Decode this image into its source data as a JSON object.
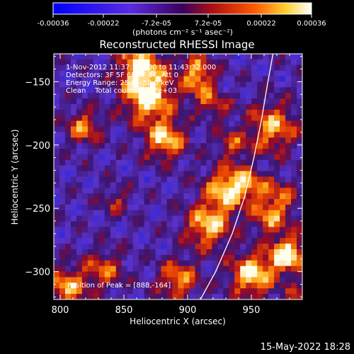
{
  "colorbar": {
    "ticks": [
      "-0.00036",
      "-0.00022",
      "-7.2e-05",
      "7.2e-05",
      "0.00022",
      "0.00036"
    ],
    "tick_values": [
      -0.00036,
      -0.00022,
      -7.2e-05,
      7.2e-05,
      0.00022,
      0.00036
    ],
    "units": "(photons cm⁻² s⁻¹ asec⁻²)"
  },
  "chart_data": {
    "type": "heatmap",
    "title": "Reconstructed RHESSI Image",
    "xlabel": "Heliocentric X (arcsec)",
    "ylabel": "Heliocentric Y (arcsec)",
    "xlim": [
      795,
      990
    ],
    "ylim": [
      -322,
      -128
    ],
    "xticks": [
      800,
      850,
      900,
      950
    ],
    "yticks": [
      -150,
      -200,
      -250,
      -300
    ],
    "xtick_labels": [
      "800",
      "850",
      "900",
      "950"
    ],
    "ytick_labels": [
      "−150",
      "−200",
      "−250",
      "−300"
    ],
    "colormap": "blue-purple-red-yellow-white",
    "annotations": [
      "1-Nov-2012 11:37:32.000 to 11:43:32.000",
      "Detectors: 3F 5F 6F 7F 8F, Att 0",
      "Energy Range: 25.0 - 50.0 keV",
      "Clean    Total counts: 5.77e+03"
    ],
    "peak_label": "Position of Peak = [888,-164]",
    "peak": [
      888,
      -164
    ],
    "limb_curve": [
      [
        910,
        -322
      ],
      [
        922,
        -300
      ],
      [
        935,
        -270
      ],
      [
        945,
        -240
      ],
      [
        952,
        -210
      ],
      [
        958,
        -180
      ],
      [
        963,
        -150
      ],
      [
        967,
        -128
      ]
    ]
  },
  "footer": {
    "date": "15-May-2022 18:28"
  }
}
